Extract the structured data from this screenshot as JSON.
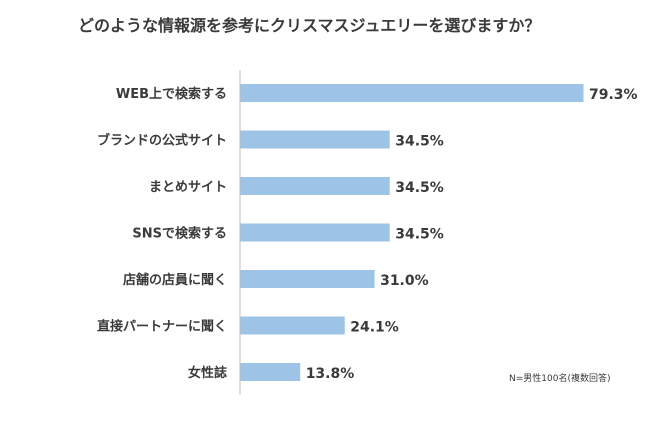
{
  "chart_data": {
    "type": "bar",
    "orientation": "horizontal",
    "title": "どのような情報源を参考にクリスマスジュエリーを選びますか？",
    "categories": [
      "WEB上で検索する",
      "ブランドの公式サイト",
      "まとめサイト",
      "SNSで検索する",
      "店舗の店員に聞く",
      "直接パートナーに聞く",
      "女性誌"
    ],
    "values": [
      79.3,
      34.5,
      34.5,
      34.5,
      31.0,
      24.1,
      13.8
    ],
    "value_labels": [
      "79.3%",
      "34.5%",
      "34.5%",
      "34.5%",
      "31.0%",
      "24.1%",
      "13.8%"
    ],
    "unit": "%",
    "xlim": [
      0,
      100
    ],
    "grid": false,
    "bar_color": "#9dc3e6",
    "axis_color": "#bfbfbf",
    "note": "N=男性100名(複数回答)"
  }
}
